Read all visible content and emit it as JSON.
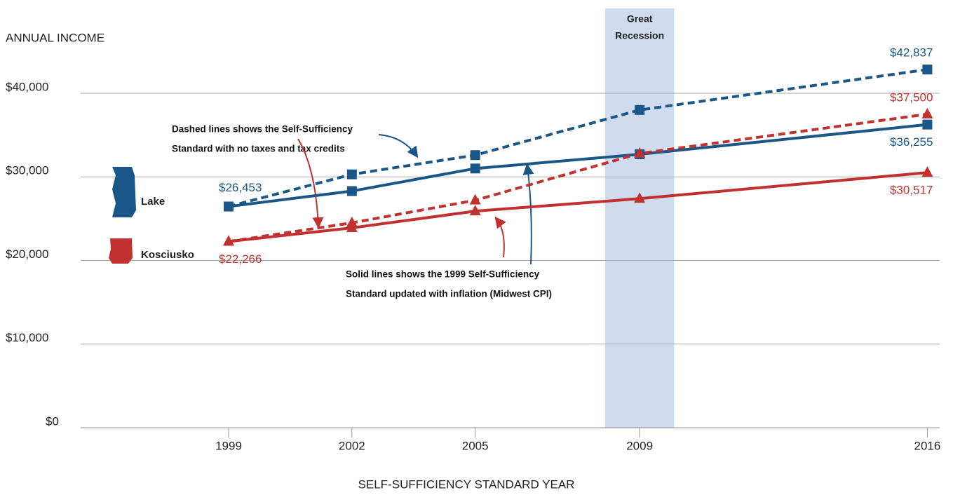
{
  "chart_data": {
    "type": "line",
    "ylabel": "ANNUAL INCOME",
    "xlabel": "SELF-SUFFICIENCY STANDARD YEAR",
    "x": [
      1999,
      2002,
      2005,
      2009,
      2016
    ],
    "xlim": [
      1995.4,
      2016.3
    ],
    "xticks": [
      1999,
      2002,
      2005,
      2009,
      2016
    ],
    "ylim": [
      0,
      40000
    ],
    "yticks": [
      {
        "value": 0,
        "label": "$0"
      },
      {
        "value": 10000,
        "label": "$10,000"
      },
      {
        "value": 20000,
        "label": "$20,000"
      },
      {
        "value": 30000,
        "label": "$30,000"
      },
      {
        "value": 40000,
        "label": "$40,000"
      }
    ],
    "grid": true,
    "legend": [
      {
        "name": "Lake",
        "color": "#1a5788"
      },
      {
        "name": "Kosciusko",
        "color": "#c0312f"
      }
    ],
    "series": [
      {
        "legend": 0,
        "dashed": true,
        "marker": "square",
        "values": [
          26453,
          30300,
          32600,
          38000,
          42837
        ],
        "value_labels": [
          null,
          null,
          null,
          null,
          "$42,837"
        ]
      },
      {
        "legend": 0,
        "dashed": false,
        "marker": "square",
        "values": [
          26453,
          28300,
          31000,
          32700,
          36255
        ],
        "value_labels": [
          "$26,453",
          null,
          null,
          null,
          "$36,255"
        ]
      },
      {
        "legend": 1,
        "dashed": true,
        "marker": "triangle",
        "values": [
          22266,
          24500,
          27200,
          32800,
          37500
        ],
        "value_labels": [
          null,
          null,
          null,
          null,
          "$37,500"
        ]
      },
      {
        "legend": 1,
        "dashed": false,
        "marker": "triangle",
        "values": [
          22266,
          23900,
          25900,
          27400,
          30517
        ],
        "value_labels": [
          "$22,266",
          null,
          null,
          null,
          "$30,517"
        ]
      }
    ],
    "shade": {
      "from": 2008.16,
      "to": 2009.84,
      "label": [
        "Great",
        "Recession"
      ]
    },
    "annotations": [
      [
        "Dashed lines shows the Self-Sufficiency",
        "Standard with no taxes and tax credits"
      ],
      [
        "Solid lines shows the 1999 Self-Sufficiency",
        "Standard updated with inflation (Midwest CPI)"
      ]
    ]
  }
}
